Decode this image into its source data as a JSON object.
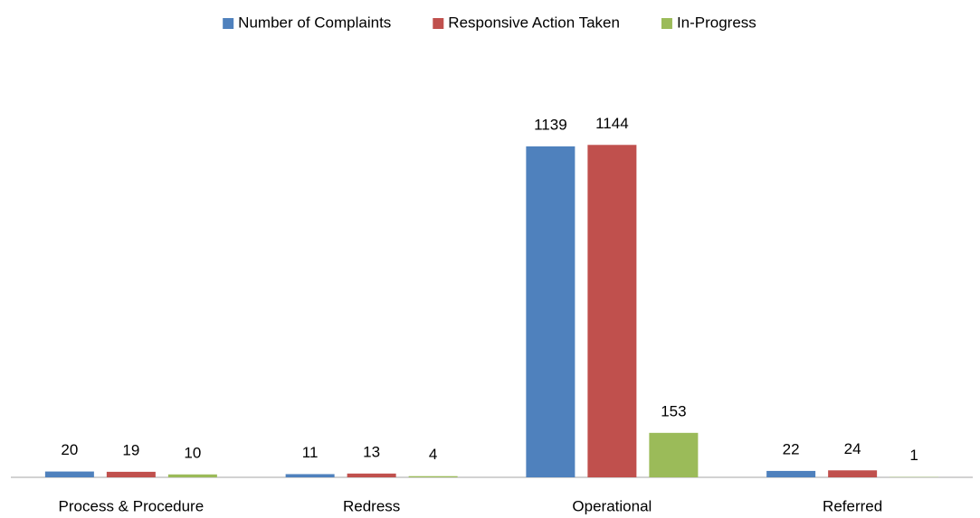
{
  "chart_data": {
    "type": "bar",
    "categories": [
      "Process & Procedure",
      "Redress",
      "Operational",
      "Referred"
    ],
    "series": [
      {
        "name": "Number of Complaints",
        "color": "#4f81bd",
        "values": [
          20,
          11,
          1139,
          22
        ]
      },
      {
        "name": "Responsive Action Taken",
        "color": "#c0504d",
        "values": [
          19,
          13,
          1144,
          24
        ]
      },
      {
        "name": "In-Progress",
        "color": "#9bbb59",
        "values": [
          10,
          4,
          153,
          1
        ]
      }
    ],
    "ylim": [
      0,
      1400
    ],
    "legend": "top"
  }
}
